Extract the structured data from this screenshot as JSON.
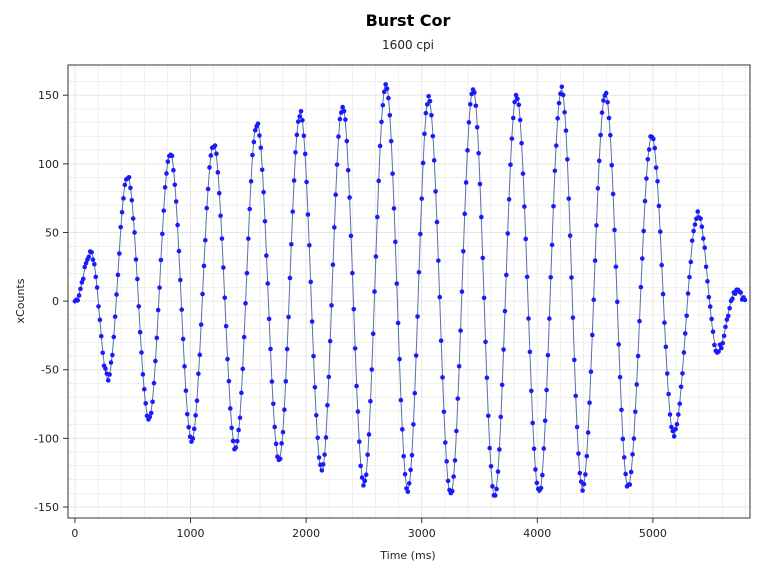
{
  "chart_data": {
    "type": "scatter",
    "title": "Burst Cor",
    "subtitle": "1600 cpi",
    "xlabel": "Time (ms)",
    "ylabel": "xCounts",
    "xlim": [
      -60,
      5840
    ],
    "ylim": [
      -158,
      172
    ],
    "x_ticks": [
      0,
      1000,
      2000,
      3000,
      4000,
      5000
    ],
    "y_ticks": [
      -150,
      -100,
      -50,
      0,
      50,
      100,
      150
    ],
    "grid": true,
    "legend": "none",
    "colors": {
      "points": "#1a1aff",
      "fit_line": "#5a6fa8",
      "grid": "#e6e6e6",
      "axis": "#333333"
    },
    "peaks": [
      {
        "t": 0,
        "v": 0
      },
      {
        "t": 140,
        "v": 35
      },
      {
        "t": 285,
        "v": -56
      },
      {
        "t": 455,
        "v": 91
      },
      {
        "t": 640,
        "v": -85
      },
      {
        "t": 825,
        "v": 108
      },
      {
        "t": 1010,
        "v": -101
      },
      {
        "t": 1200,
        "v": 114
      },
      {
        "t": 1390,
        "v": -107
      },
      {
        "t": 1575,
        "v": 130
      },
      {
        "t": 1765,
        "v": -115
      },
      {
        "t": 1950,
        "v": 137
      },
      {
        "t": 2135,
        "v": -124
      },
      {
        "t": 2315,
        "v": 142
      },
      {
        "t": 2500,
        "v": -133
      },
      {
        "t": 2690,
        "v": 158
      },
      {
        "t": 2880,
        "v": -137
      },
      {
        "t": 3060,
        "v": 147
      },
      {
        "t": 3250,
        "v": -141
      },
      {
        "t": 3445,
        "v": 154
      },
      {
        "t": 3630,
        "v": -141
      },
      {
        "t": 3820,
        "v": 150
      },
      {
        "t": 4015,
        "v": -140
      },
      {
        "t": 4210,
        "v": 154
      },
      {
        "t": 4390,
        "v": -136
      },
      {
        "t": 4590,
        "v": 151
      },
      {
        "t": 4785,
        "v": -135
      },
      {
        "t": 4990,
        "v": 120
      },
      {
        "t": 5180,
        "v": -97
      },
      {
        "t": 5390,
        "v": 63
      },
      {
        "t": 5560,
        "v": -36
      },
      {
        "t": 5720,
        "v": 8
      },
      {
        "t": 5800,
        "v": 0
      }
    ]
  }
}
